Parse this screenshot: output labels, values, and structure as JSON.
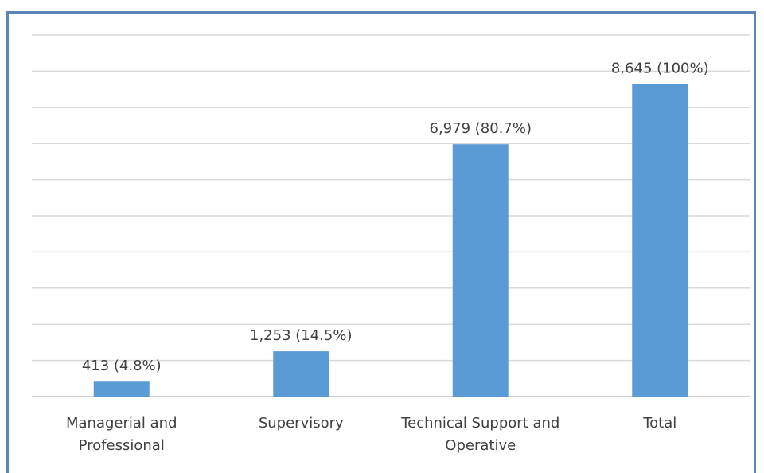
{
  "chart_data": {
    "type": "bar",
    "categories": [
      [
        "Managerial and",
        "Professional"
      ],
      [
        "Supervisory"
      ],
      [
        "Technical Support and",
        "Operative"
      ],
      [
        "Total"
      ]
    ],
    "values": [
      413,
      1253,
      6979,
      8645
    ],
    "data_labels": [
      "413 (4.8%)",
      "1,253 (14.5%)",
      "6,979 (80.7%)",
      "8,645 (100%)"
    ],
    "ylim": [
      0,
      10000
    ],
    "grid": true,
    "bar_color": "#5b9bd5",
    "grid_color": "#d9d9d9",
    "frame_color": "#5b87b8"
  }
}
